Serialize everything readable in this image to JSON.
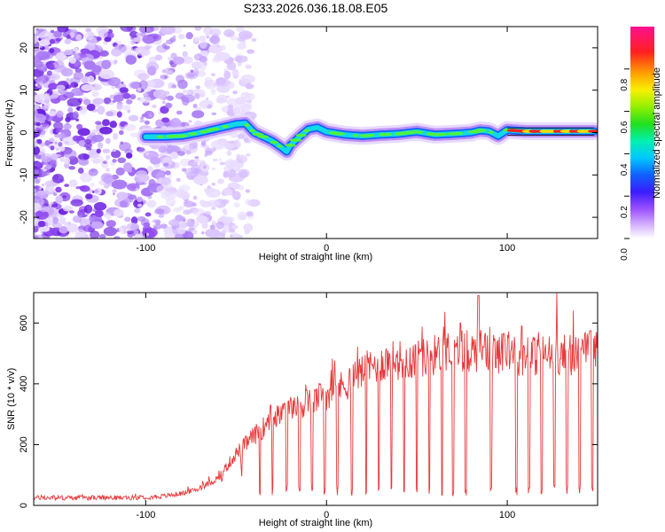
{
  "title": "S233.2026.036.18.08.E05",
  "colors": {
    "snr_line": "#e8383a",
    "ridge_core": "#e82626",
    "noise": "#8a3cf0"
  },
  "chart_data": [
    {
      "type": "heatmap",
      "name": "spectrogram",
      "xlabel": "Height of straight line (km)",
      "ylabel": "Frequency (Hz)",
      "xlim": [
        -162,
        150
      ],
      "ylim": [
        -25,
        25
      ],
      "x_ticks": [
        -100,
        0,
        100
      ],
      "x_tick_labels": [
        "-100",
        "0",
        "100"
      ],
      "y_ticks": [
        20,
        10,
        0,
        -10,
        -20
      ],
      "y_tick_labels": [
        "20",
        "10",
        "0",
        "-10",
        "-20"
      ],
      "colorbar": {
        "label": "Normalized spectral amplitude",
        "range": [
          0,
          1
        ],
        "ticks": [
          0.0,
          0.2,
          0.4,
          0.6,
          0.8
        ],
        "tick_labels": [
          "0.0",
          "0.2",
          "0.4",
          "0.6",
          "0.8"
        ]
      },
      "ridge": {
        "x": [
          -100,
          -90,
          -80,
          -70,
          -60,
          -55,
          -50,
          -45,
          -40,
          -35,
          -30,
          -25,
          -22,
          -20,
          -15,
          -10,
          -5,
          0,
          10,
          20,
          30,
          40,
          50,
          60,
          70,
          80,
          85,
          90,
          95,
          100,
          110,
          120,
          130,
          140,
          148
        ],
        "y": [
          -1,
          -1,
          -0.8,
          0,
          1,
          1.5,
          2,
          2.2,
          0,
          -1,
          -2,
          -3.5,
          -4.5,
          -3,
          -1,
          0.8,
          1.2,
          0.2,
          -0.5,
          -0.8,
          -0.5,
          -0.3,
          0.2,
          -0.5,
          -0.3,
          0,
          0.5,
          0.3,
          -0.8,
          0.6,
          0.3,
          0.3,
          0.3,
          0.3,
          0.3
        ]
      },
      "noise_extent_x": [
        -162,
        -70
      ]
    },
    {
      "type": "line",
      "name": "snr",
      "xlabel": "Height of straight line (km)",
      "ylabel": "SNR (10 * v/v)",
      "xlim": [
        -162,
        150
      ],
      "ylim": [
        0,
        700
      ],
      "x_ticks": [
        -100,
        0,
        100
      ],
      "x_tick_labels": [
        "-100",
        "0",
        "100"
      ],
      "y_ticks": [
        0,
        200,
        400,
        600
      ],
      "y_tick_labels": [
        "0",
        "200",
        "400",
        "600"
      ],
      "envelope": {
        "x": [
          -162,
          -130,
          -110,
          -90,
          -80,
          -70,
          -60,
          -50,
          -40,
          -30,
          -20,
          -10,
          0,
          10,
          20,
          30,
          40,
          50,
          60,
          70,
          80,
          90,
          100,
          110,
          120,
          130,
          140,
          150
        ],
        "y": [
          25,
          25,
          25,
          30,
          40,
          55,
          90,
          170,
          230,
          280,
          320,
          340,
          365,
          395,
          440,
          470,
          480,
          480,
          495,
          500,
          510,
          500,
          505,
          490,
          495,
          495,
          500,
          505
        ]
      },
      "dips": [
        -70,
        -58,
        -47,
        -37,
        -30,
        -22,
        -15,
        -8,
        -1,
        6,
        14,
        22,
        29,
        36,
        43,
        50,
        57,
        64,
        70,
        77,
        84,
        91,
        98,
        105,
        112,
        119,
        126,
        133,
        140,
        147
      ],
      "spikes": [
        {
          "x": 84,
          "y": 690
        },
        {
          "x": 87,
          "y": 520
        },
        {
          "x": 74,
          "y": 600
        },
        {
          "x": 108,
          "y": 590
        },
        {
          "x": 146,
          "y": 575
        },
        {
          "x": 98,
          "y": 565
        },
        {
          "x": -31,
          "y": 330
        }
      ]
    }
  ]
}
